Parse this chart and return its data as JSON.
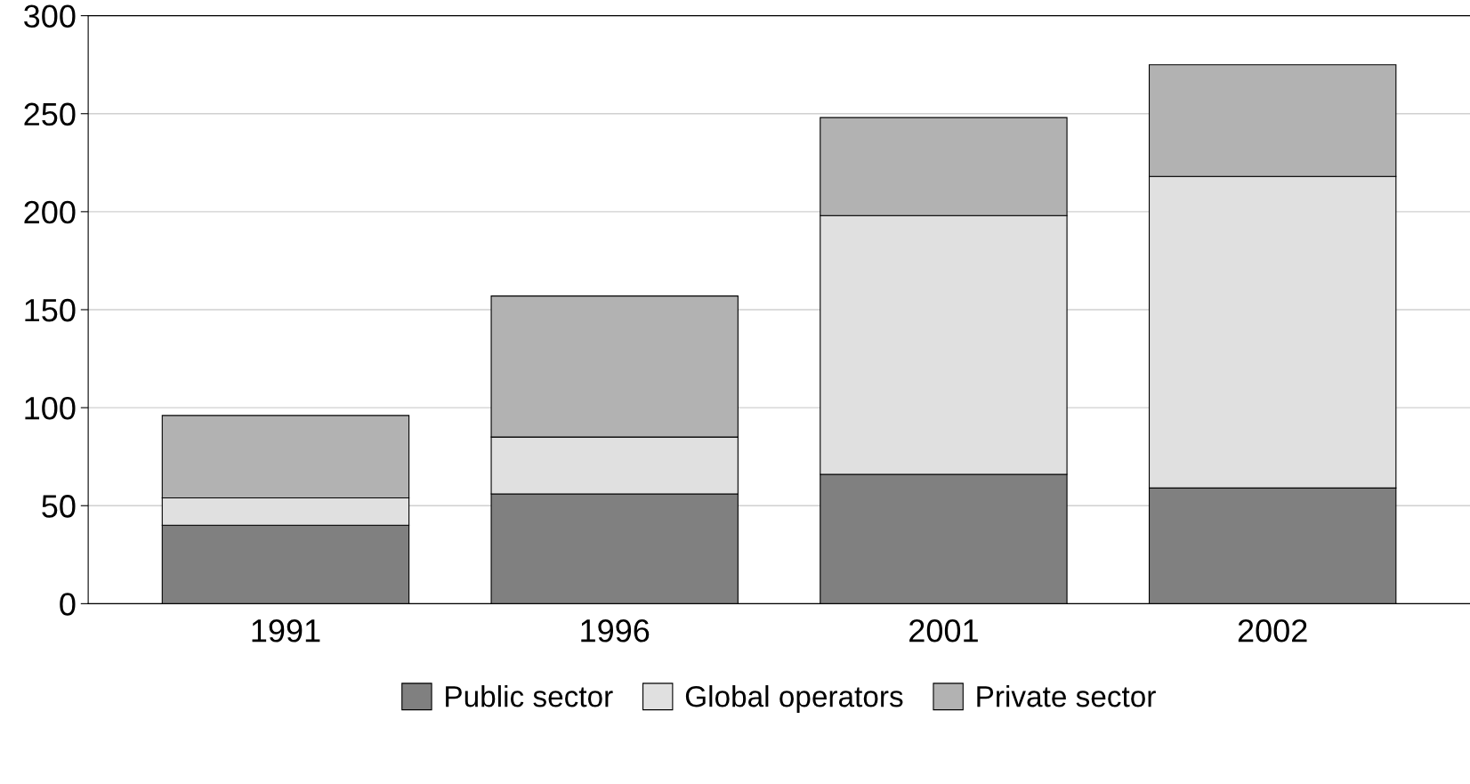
{
  "chart_data": {
    "type": "bar",
    "stacked": true,
    "categories": [
      "1991",
      "1996",
      "2001",
      "2002"
    ],
    "series": [
      {
        "name": "Public sector",
        "color": "#808080",
        "values": [
          40,
          56,
          66,
          59
        ]
      },
      {
        "name": "Global operators",
        "color": "#e0e0e0",
        "values": [
          14,
          29,
          132,
          159
        ]
      },
      {
        "name": "Private sector",
        "color": "#b2b2b2",
        "values": [
          42,
          72,
          50,
          57
        ]
      }
    ],
    "ylim": [
      0,
      300
    ],
    "yticks": [
      0,
      50,
      100,
      150,
      200,
      250,
      300
    ],
    "grid": "y",
    "legend": "bottom"
  }
}
